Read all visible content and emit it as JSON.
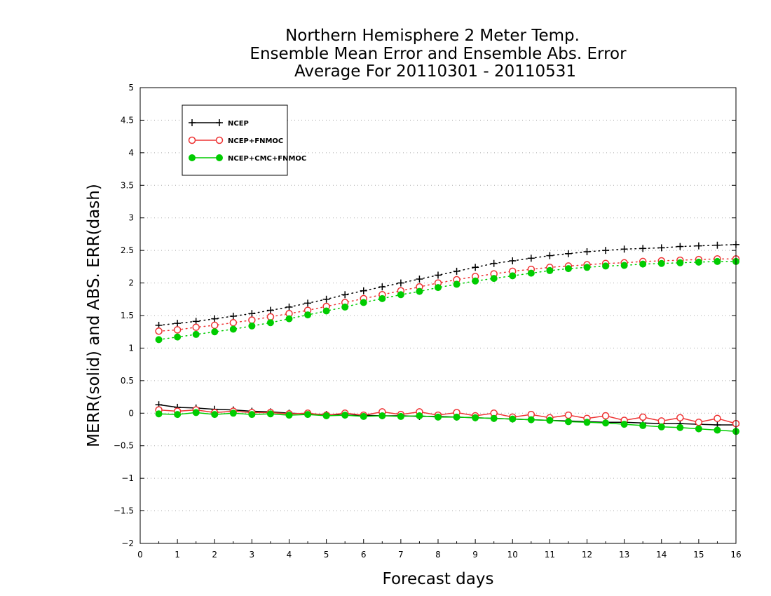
{
  "chart_data": {
    "type": "line",
    "title": [
      "Northern Hemisphere 2 Meter Temp.",
      "Ensemble Mean Error and Ensemble Abs. Error",
      "Average For 20110301 - 20110531"
    ],
    "xlabel": "Forecast days",
    "ylabel": "MERR(solid) and ABS. ERR(dash)",
    "xlim": [
      0,
      16
    ],
    "ylim": [
      -2,
      5
    ],
    "xticks": [
      "0",
      "1",
      "2",
      "3",
      "4",
      "5",
      "6",
      "7",
      "8",
      "9",
      "10",
      "11",
      "12",
      "13",
      "14",
      "15",
      "16"
    ],
    "yticks": [
      "−2",
      "−1.5",
      "−1",
      "−0.5",
      "0",
      "0.5",
      "1",
      "1.5",
      "2",
      "2.5",
      "3",
      "3.5",
      "4",
      "4.5",
      "5"
    ],
    "ytick_values": [
      -2,
      -1.5,
      -1,
      -0.5,
      0,
      0.5,
      1,
      1.5,
      2,
      2.5,
      3,
      3.5,
      4,
      4.5,
      5
    ],
    "grid": "horizontal dotted",
    "legend_position": "top-left",
    "x": [
      0.5,
      1,
      1.5,
      2,
      2.5,
      3,
      3.5,
      4,
      4.5,
      5,
      5.5,
      6,
      6.5,
      7,
      7.5,
      8,
      8.5,
      9,
      9.5,
      10,
      10.5,
      11,
      11.5,
      12,
      12.5,
      13,
      13.5,
      14,
      14.5,
      15,
      15.5,
      16
    ],
    "series": [
      {
        "name": "NCEP",
        "color": "#000000",
        "marker": "plus",
        "abs_err": [
          1.35,
          1.38,
          1.41,
          1.45,
          1.49,
          1.53,
          1.58,
          1.63,
          1.69,
          1.75,
          1.82,
          1.88,
          1.94,
          2.0,
          2.06,
          2.12,
          2.18,
          2.24,
          2.3,
          2.34,
          2.38,
          2.42,
          2.45,
          2.48,
          2.5,
          2.52,
          2.53,
          2.54,
          2.56,
          2.57,
          2.58,
          2.59
        ],
        "mean_err": [
          0.13,
          0.09,
          0.08,
          0.06,
          0.05,
          0.03,
          0.02,
          0.0,
          -0.01,
          -0.02,
          -0.03,
          -0.03,
          -0.04,
          -0.04,
          -0.05,
          -0.05,
          -0.06,
          -0.07,
          -0.08,
          -0.09,
          -0.1,
          -0.11,
          -0.12,
          -0.13,
          -0.14,
          -0.14,
          -0.15,
          -0.16,
          -0.16,
          -0.17,
          -0.18,
          -0.18
        ]
      },
      {
        "name": "NCEP+FNMOC",
        "color": "#ee3333",
        "marker": "circle-open",
        "abs_err": [
          1.26,
          1.28,
          1.32,
          1.35,
          1.39,
          1.43,
          1.48,
          1.53,
          1.58,
          1.64,
          1.7,
          1.76,
          1.82,
          1.88,
          1.94,
          2.0,
          2.05,
          2.1,
          2.14,
          2.18,
          2.21,
          2.24,
          2.26,
          2.28,
          2.3,
          2.31,
          2.33,
          2.34,
          2.35,
          2.36,
          2.37,
          2.37
        ],
        "mean_err": [
          0.05,
          0.03,
          0.05,
          0.01,
          0.03,
          0.01,
          0.01,
          -0.01,
          0.0,
          -0.03,
          0.0,
          -0.03,
          0.02,
          -0.02,
          0.02,
          -0.03,
          0.01,
          -0.04,
          0.0,
          -0.06,
          -0.02,
          -0.07,
          -0.03,
          -0.08,
          -0.04,
          -0.11,
          -0.06,
          -0.12,
          -0.07,
          -0.14,
          -0.08,
          -0.16
        ]
      },
      {
        "name": "NCEP+CMC+FNMOC",
        "color": "#00cc00",
        "marker": "circle-filled",
        "abs_err": [
          1.13,
          1.17,
          1.21,
          1.25,
          1.29,
          1.34,
          1.39,
          1.45,
          1.51,
          1.57,
          1.63,
          1.7,
          1.76,
          1.82,
          1.87,
          1.93,
          1.98,
          2.03,
          2.07,
          2.11,
          2.15,
          2.19,
          2.22,
          2.24,
          2.26,
          2.27,
          2.29,
          2.3,
          2.31,
          2.32,
          2.33,
          2.33
        ],
        "mean_err": [
          -0.01,
          -0.02,
          0.01,
          -0.02,
          0.0,
          -0.02,
          -0.01,
          -0.03,
          -0.02,
          -0.04,
          -0.03,
          -0.05,
          -0.04,
          -0.05,
          -0.04,
          -0.06,
          -0.06,
          -0.07,
          -0.08,
          -0.09,
          -0.1,
          -0.11,
          -0.13,
          -0.14,
          -0.15,
          -0.17,
          -0.19,
          -0.21,
          -0.22,
          -0.24,
          -0.26,
          -0.28
        ]
      }
    ]
  }
}
